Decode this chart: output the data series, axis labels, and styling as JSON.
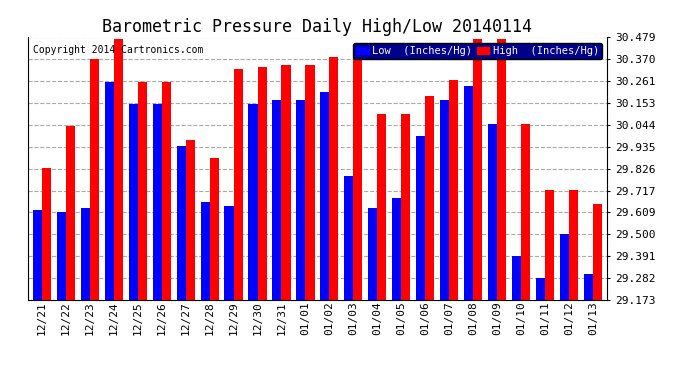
{
  "title": "Barometric Pressure Daily High/Low 20140114",
  "copyright": "Copyright 2014 Cartronics.com",
  "legend_low": "Low  (Inches/Hg)",
  "legend_high": "High  (Inches/Hg)",
  "dates": [
    "12/21",
    "12/22",
    "12/23",
    "12/24",
    "12/25",
    "12/26",
    "12/27",
    "12/28",
    "12/29",
    "12/30",
    "12/31",
    "01/01",
    "01/02",
    "01/03",
    "01/04",
    "01/05",
    "01/06",
    "01/07",
    "01/08",
    "01/09",
    "01/10",
    "01/11",
    "01/12",
    "01/13"
  ],
  "low_values": [
    29.62,
    29.61,
    29.63,
    30.26,
    30.15,
    30.15,
    29.94,
    29.66,
    29.64,
    30.15,
    30.17,
    30.17,
    30.21,
    29.79,
    29.63,
    29.68,
    29.99,
    30.17,
    30.24,
    30.05,
    29.39,
    29.28,
    29.5,
    29.3
  ],
  "high_values": [
    29.83,
    30.04,
    30.37,
    30.47,
    30.26,
    30.26,
    29.97,
    29.88,
    30.32,
    30.33,
    30.34,
    30.34,
    30.38,
    30.38,
    30.1,
    30.1,
    30.19,
    30.27,
    30.47,
    30.47,
    30.05,
    29.72,
    29.72,
    29.65
  ],
  "ylim_min": 29.173,
  "ylim_max": 30.479,
  "yticks": [
    29.173,
    29.282,
    29.391,
    29.5,
    29.609,
    29.717,
    29.826,
    29.935,
    30.044,
    30.153,
    30.261,
    30.37,
    30.479
  ],
  "ytick_labels": [
    "29.173",
    "29.282",
    "29.391",
    "29.500",
    "29.609",
    "29.717",
    "29.826",
    "29.935",
    "30.044",
    "30.153",
    "30.261",
    "30.370",
    "30.479"
  ],
  "bar_width": 0.38,
  "low_color": "#0000ff",
  "high_color": "#ff0000",
  "bg_color": "#ffffff",
  "grid_color": "#aaaaaa",
  "title_fontsize": 12,
  "tick_fontsize": 8,
  "copyright_fontsize": 7
}
